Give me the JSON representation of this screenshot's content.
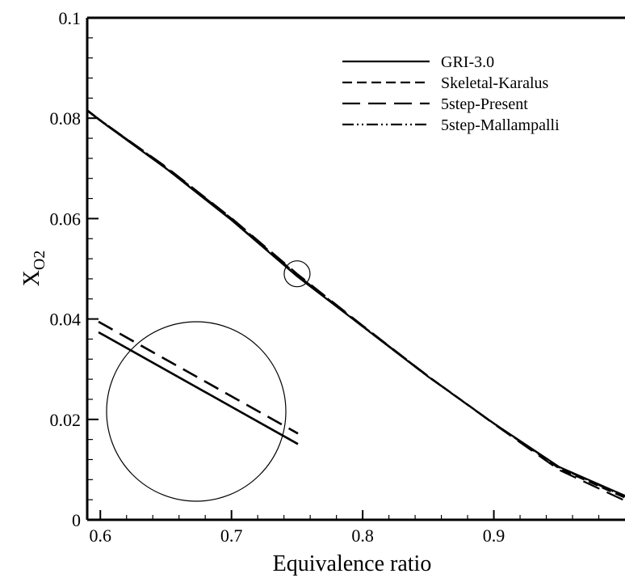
{
  "chart_data": {
    "type": "line",
    "xlabel": "Equivalence ratio",
    "ylabel": "X",
    "ylabel_sub": "O2",
    "xlim": [
      0.59,
      1.0
    ],
    "ylim": [
      0,
      0.1
    ],
    "x_ticks": [
      0.6,
      0.7,
      0.8,
      0.9
    ],
    "x_tick_labels": [
      "0.6",
      "0.7",
      "0.8",
      "0.9"
    ],
    "y_ticks": [
      0,
      0.02,
      0.04,
      0.06,
      0.08,
      0.1
    ],
    "y_tick_labels": [
      "0",
      "0.02",
      "0.04",
      "0.06",
      "0.08",
      "0.1"
    ],
    "grid": false,
    "legend_position": "top-right",
    "series": [
      {
        "name": "GRI-3.0",
        "line_style": "solid",
        "x": [
          0.59,
          0.6,
          0.65,
          0.7,
          0.75,
          0.8,
          0.85,
          0.9,
          0.95,
          1.0
        ],
        "y": [
          0.0815,
          0.0795,
          0.07,
          0.0597,
          0.0485,
          0.0385,
          0.0285,
          0.0192,
          0.0105,
          0.0048
        ]
      },
      {
        "name": "Skeletal-Karalus",
        "line_style": "dashed",
        "x": [
          0.59,
          0.6,
          0.65,
          0.7,
          0.75,
          0.8,
          0.85,
          0.9,
          0.95,
          1.0
        ],
        "y": [
          0.0816,
          0.0796,
          0.0702,
          0.06,
          0.0488,
          0.0386,
          0.0286,
          0.0192,
          0.0102,
          0.0044
        ]
      },
      {
        "name": "5step-Present",
        "line_style": "long-dashed",
        "x": [
          0.59,
          0.6,
          0.65,
          0.7,
          0.75,
          0.8,
          0.85,
          0.9,
          0.95,
          1.0
        ],
        "y": [
          0.0816,
          0.0796,
          0.0703,
          0.0601,
          0.049,
          0.0387,
          0.0286,
          0.0191,
          0.0099,
          0.0038
        ]
      },
      {
        "name": "5step-Mallampalli",
        "line_style": "dash-dot-dot",
        "x": [
          0.59,
          0.6,
          0.65,
          0.7,
          0.75,
          0.8,
          0.85,
          0.9,
          0.95,
          1.0
        ],
        "y": [
          0.0815,
          0.0795,
          0.07,
          0.0598,
          0.0486,
          0.0385,
          0.0285,
          0.0192,
          0.0104,
          0.0046
        ]
      }
    ],
    "annotations": [
      {
        "type": "marker-circle",
        "x": 0.75,
        "y": 0.049
      },
      {
        "type": "inset-zoom",
        "center_x": 0.75,
        "center_y": 0.049
      }
    ]
  }
}
